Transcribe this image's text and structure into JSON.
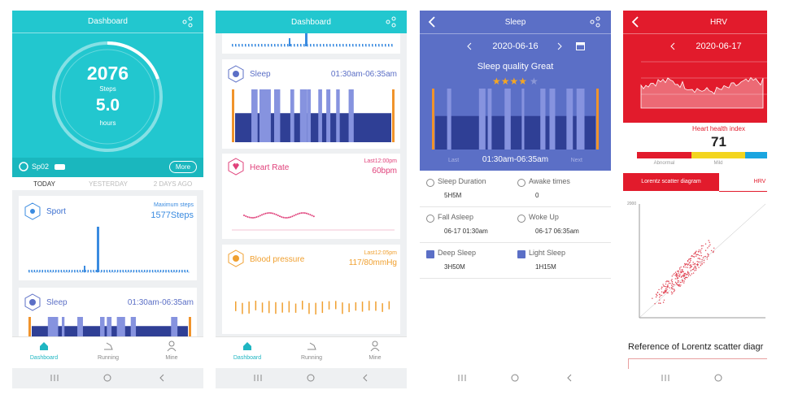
{
  "screens": [
    {
      "header": {
        "title": "Dashboard"
      },
      "ring": {
        "steps": "2076",
        "steps_label": "Steps",
        "hours": "5.0",
        "hours_label": "hours"
      },
      "spo2": "Sp02",
      "more": "More",
      "tabs": [
        "TODAY",
        "YESTERDAY",
        "2 DAYS AGO"
      ],
      "cards": [
        {
          "title": "Sport",
          "note": "Maximum steps",
          "value": "1577Steps"
        },
        {
          "title": "Sleep",
          "value": "01:30am-06:35am"
        }
      ],
      "nav": [
        "Dashboard",
        "Running",
        "Mine"
      ]
    },
    {
      "header": {
        "title": "Dashboard"
      },
      "cards": [
        {
          "title": "Sleep",
          "value": "01:30am-06:35am"
        },
        {
          "title": "Heart Rate",
          "note": "Last12:00pm",
          "value": "60bpm"
        },
        {
          "title": "Blood pressure",
          "note": "Last12:05pm",
          "value": "117/80mmHg"
        }
      ],
      "nav": [
        "Dashboard",
        "Running",
        "Mine"
      ]
    },
    {
      "header": {
        "title": "Sleep"
      },
      "date": "2020-06-16",
      "quality": "Sleep quality Great",
      "range": {
        "prev": "Last",
        "time": "01:30am-06:35am",
        "next": "Next"
      },
      "stats": [
        {
          "label": "Sleep Duration",
          "value": "5H5M"
        },
        {
          "label": "Awake times",
          "value": "0"
        },
        {
          "label": "Fall Asleep",
          "value": "06-17 01:30am"
        },
        {
          "label": "Woke Up",
          "value": "06-17 06:35am"
        },
        {
          "label": "Deep Sleep",
          "value": "3H50M"
        },
        {
          "label": "Light Sleep",
          "value": "1H15M"
        }
      ]
    },
    {
      "header": {
        "title": "HRV"
      },
      "date": "2020-06-17",
      "index_title": "Heart health index",
      "index_value": "71",
      "levels": [
        "Abnormal",
        "Mild"
      ],
      "tabs": [
        "Lorentz scatter diagram",
        "HRV"
      ],
      "scatter_max": "2000",
      "reference": "Reference of Lorentz scatter diagr"
    }
  ]
}
